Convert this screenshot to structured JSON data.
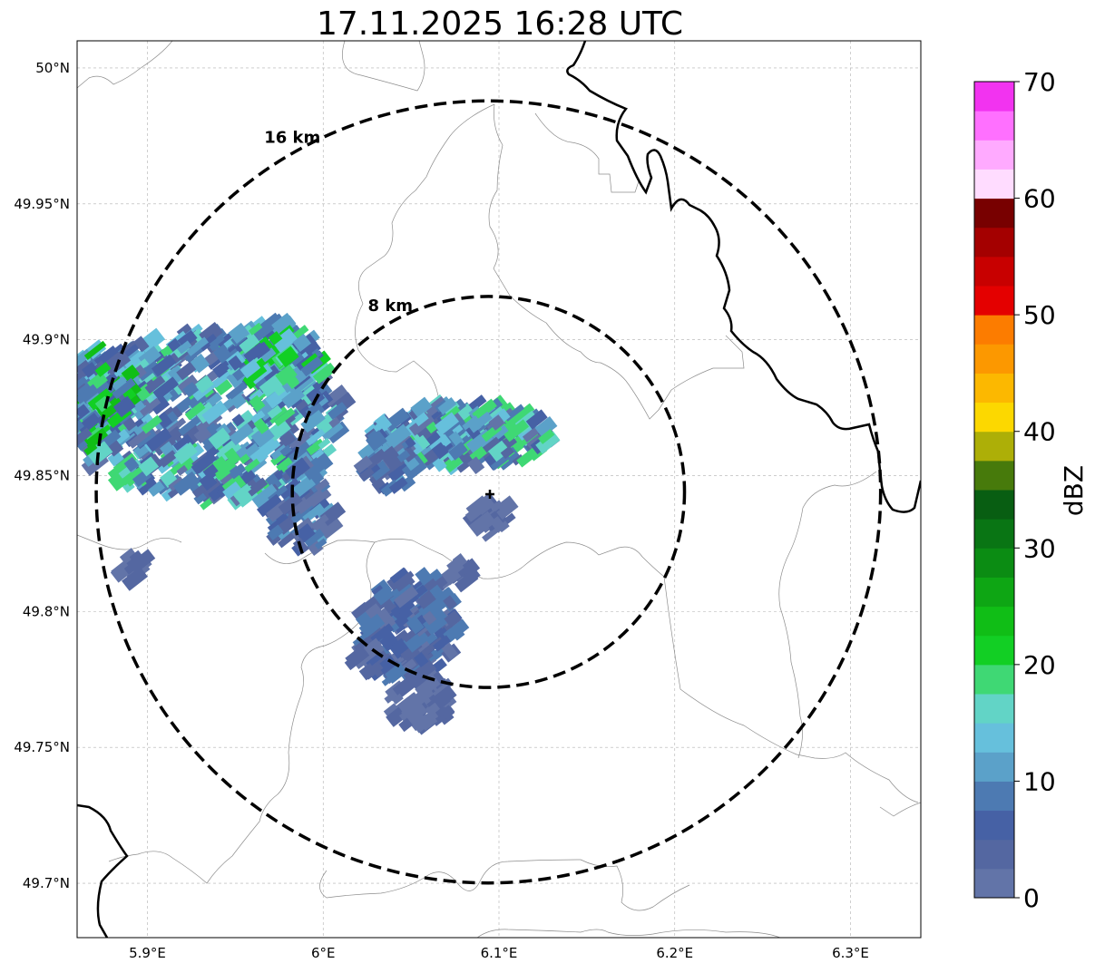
{
  "title": "17.11.2025 16:28 UTC",
  "map": {
    "lon_range": [
      5.86,
      6.34
    ],
    "lat_range": [
      49.68,
      50.01
    ],
    "lon_ticks": [
      {
        "value": 5.9,
        "label": "5.9°E"
      },
      {
        "value": 6.0,
        "label": "6°E"
      },
      {
        "value": 6.1,
        "label": "6.1°E"
      },
      {
        "value": 6.2,
        "label": "6.2°E"
      },
      {
        "value": 6.3,
        "label": "6.3°E"
      }
    ],
    "lat_ticks": [
      {
        "value": 50.0,
        "label": "50°N"
      },
      {
        "value": 49.95,
        "label": "49.95°N"
      },
      {
        "value": 49.9,
        "label": "49.9°N"
      },
      {
        "value": 49.85,
        "label": "49.85°N"
      },
      {
        "value": 49.8,
        "label": "49.8°N"
      },
      {
        "value": 49.75,
        "label": "49.75°N"
      },
      {
        "value": 49.7,
        "label": "49.7°N"
      }
    ],
    "gridlines": true,
    "radar_site": {
      "lon": 6.094,
      "lat": 49.844
    },
    "range_rings": [
      {
        "km": 8,
        "label": "8 km"
      },
      {
        "km": 16,
        "label": "16 km"
      }
    ]
  },
  "colorbar": {
    "label": "dBZ",
    "min": 0,
    "max": 70,
    "tick_labels": [
      "0",
      "10",
      "20",
      "30",
      "40",
      "50",
      "60",
      "70"
    ],
    "colors": [
      "#6274a8",
      "#5467a1",
      "#4661a5",
      "#4d7ab2",
      "#5ba1c9",
      "#66c0dc",
      "#62d4c6",
      "#3fd874",
      "#12cf24",
      "#10be16",
      "#0ea614",
      "#0b8c13",
      "#097514",
      "#085e12",
      "#477a0b",
      "#adaf07",
      "#fcd800",
      "#fcb800",
      "#fc9800",
      "#fc7c00",
      "#e40000",
      "#c80000",
      "#a40000",
      "#780000",
      "#ffdcff",
      "#ffaaff",
      "#ff70ff",
      "#f233f0"
    ]
  }
}
